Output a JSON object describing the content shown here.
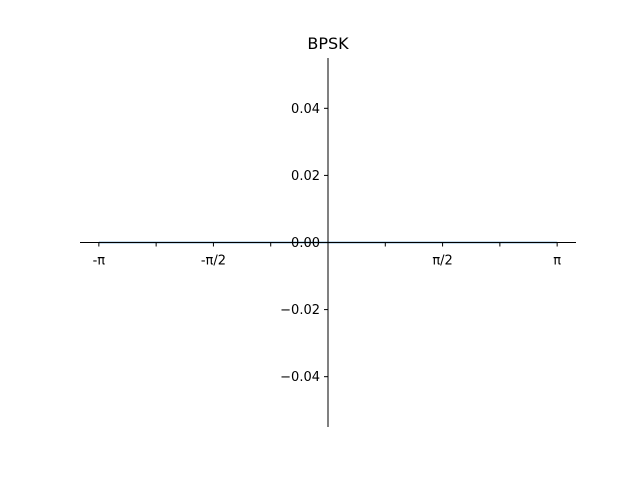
{
  "chart_data": {
    "type": "line",
    "title": "BPSK",
    "xlabel": "",
    "ylabel": "",
    "xlim": [
      -3.4,
      3.4
    ],
    "ylim": [
      -0.055,
      0.055
    ],
    "grid": false,
    "legend": "none",
    "spines": "centered",
    "x_ticks": [
      {
        "value": -3.14159,
        "label": "-π"
      },
      {
        "value": -2.35619,
        "label": ""
      },
      {
        "value": -1.5708,
        "label": "-π/2"
      },
      {
        "value": -0.7854,
        "label": ""
      },
      {
        "value": 0,
        "label": ""
      },
      {
        "value": 0.7854,
        "label": ""
      },
      {
        "value": 1.5708,
        "label": "π/2"
      },
      {
        "value": 2.35619,
        "label": ""
      },
      {
        "value": 3.14159,
        "label": "π"
      }
    ],
    "y_ticks": [
      {
        "value": 0.04,
        "label": "0.04"
      },
      {
        "value": 0.02,
        "label": "0.02"
      },
      {
        "value": 0.0,
        "label": "0.00"
      },
      {
        "value": -0.02,
        "label": "−0.02"
      },
      {
        "value": -0.04,
        "label": "−0.04"
      }
    ],
    "series": [
      {
        "x": [
          -3.14159,
          -1.5708,
          0,
          1.5708,
          3.14159
        ],
        "values": [
          0,
          0,
          0,
          0,
          0
        ],
        "color": "#1f77b4"
      }
    ]
  },
  "colors": {
    "axis": "#000000",
    "series": "#1f77b4",
    "background": "#ffffff"
  }
}
